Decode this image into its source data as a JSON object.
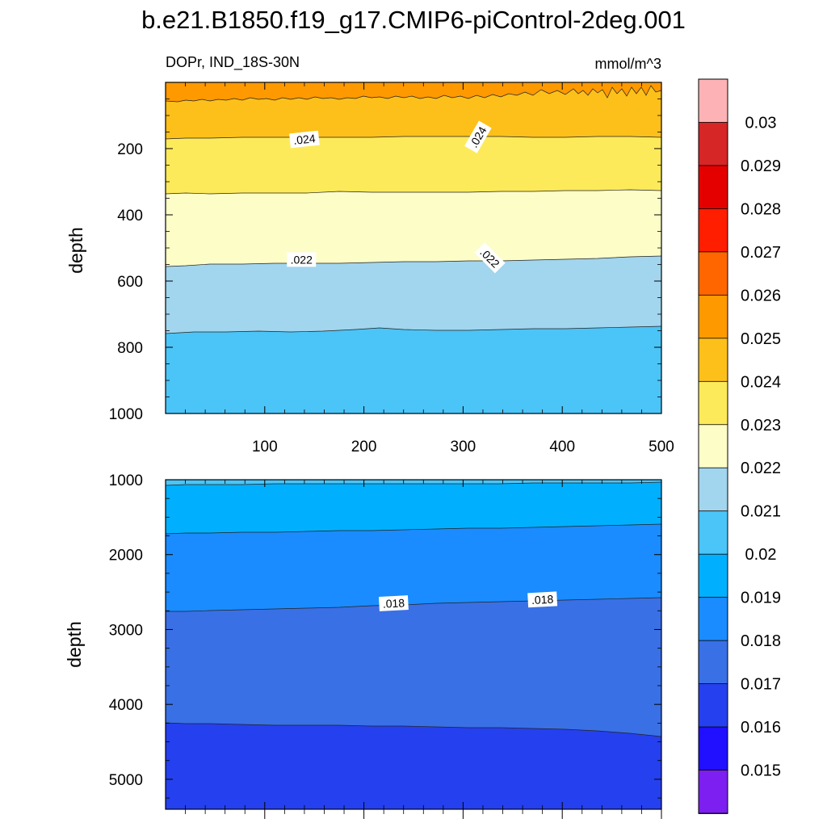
{
  "chart_data": [
    {
      "type": "heatmap",
      "title": "b.e21.B1850.f19_g17.CMIP6-piControl-2deg.001",
      "subtitle_left": "DOPr, IND_18S-30N",
      "subtitle_right": "mmol/m^3",
      "xlabel": "",
      "ylabel": "depth",
      "xlim": [
        0,
        500
      ],
      "ylim": [
        1000,
        0
      ],
      "x_ticks": [
        "100",
        "200",
        "300",
        "400",
        "500"
      ],
      "y_ticks": [
        "200",
        "400",
        "600",
        "800",
        "1000"
      ],
      "x_tick_values": [
        100,
        200,
        300,
        400,
        500
      ],
      "y_tick_values": [
        200,
        400,
        600,
        800,
        1000
      ],
      "contour_labels": [
        {
          "text": ".024",
          "x": 140,
          "depth": 172
        },
        {
          "text": ".024",
          "x": 315,
          "depth": 165
        },
        {
          "text": ".022",
          "x": 137,
          "depth": 535
        },
        {
          "text": ".022",
          "x": 327,
          "depth": 530
        }
      ]
    },
    {
      "type": "heatmap",
      "xlabel": "",
      "ylabel": "depth",
      "xlim": [
        0,
        500
      ],
      "ylim": [
        5400,
        1000
      ],
      "y_ticks": [
        "1000",
        "2000",
        "3000",
        "4000",
        "5000"
      ],
      "y_tick_values": [
        1000,
        2000,
        3000,
        4000,
        5000
      ],
      "contour_labels": [
        {
          "text": ".018",
          "x": 230,
          "depth": 2650
        },
        {
          "text": ".018",
          "x": 380,
          "depth": 2600
        }
      ]
    }
  ],
  "colorbar": {
    "labels": [
      "0.03",
      "0.029",
      "0.028",
      "0.027",
      "0.026",
      "0.025",
      "0.024",
      "0.023",
      "0.022",
      "0.021",
      "0.02",
      "0.019",
      "0.018",
      "0.017",
      "0.016",
      "0.015"
    ],
    "colors": [
      "#fdb3b5",
      "#d62626",
      "#e50000",
      "#ff1e00",
      "#ff6600",
      "#ff9900",
      "#fdc01a",
      "#fdea5a",
      "#fdfdc8",
      "#a2d5ee",
      "#4bc4f7",
      "#00b0ff",
      "#1a8cff",
      "#3970e6",
      "#2540ee",
      "#2010ff",
      "#7c1ff0"
    ]
  }
}
